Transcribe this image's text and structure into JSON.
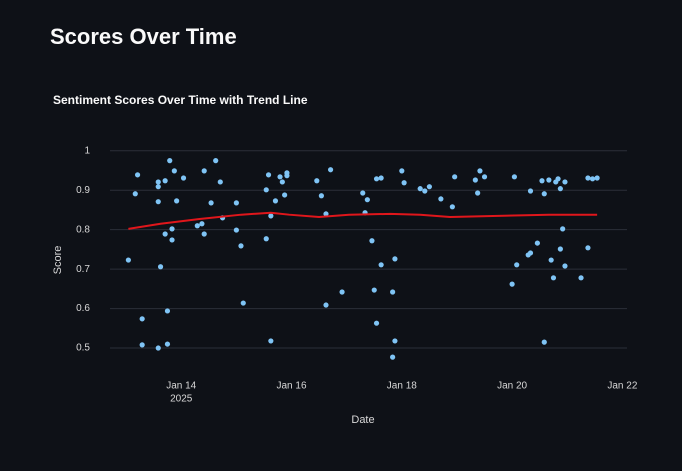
{
  "header": {
    "title": "Scores Over Time"
  },
  "chart_data": {
    "type": "scatter",
    "title": "Sentiment Scores Over Time with Trend Line",
    "x_label": "Date",
    "y_label": "Score",
    "xlim": [
      "2025-01-12T17:00",
      "2025-01-22T02:00"
    ],
    "xticks": [
      {
        "value": "2025-01-14T00:00",
        "label": "Jan 14"
      },
      {
        "value": "2025-01-16T00:00",
        "label": "Jan 16"
      },
      {
        "value": "2025-01-18T00:00",
        "label": "Jan 18"
      },
      {
        "value": "2025-01-20T00:00",
        "label": "Jan 20"
      },
      {
        "value": "2025-01-22T00:00",
        "label": "Jan 22"
      }
    ],
    "xtick_year": "2025",
    "ylim": [
      0.457,
      1.04
    ],
    "yticks": [
      0.5,
      0.6,
      0.7,
      0.8,
      0.9,
      1
    ],
    "grid": true,
    "series": [
      {
        "mode": "markers",
        "color": "#7fc4f5",
        "x": [
          "2025-01-13T01:00",
          "2025-01-13T04:00",
          "2025-01-13T05:00",
          "2025-01-13T07:00",
          "2025-01-13T07:00",
          "2025-01-13T14:00",
          "2025-01-13T14:00",
          "2025-01-13T14:00",
          "2025-01-13T14:00",
          "2025-01-13T15:00",
          "2025-01-13T17:00",
          "2025-01-13T17:00",
          "2025-01-13T18:00",
          "2025-01-13T18:00",
          "2025-01-13T19:00",
          "2025-01-13T20:00",
          "2025-01-13T20:00",
          "2025-01-13T21:00",
          "2025-01-13T22:00",
          "2025-01-14T01:00",
          "2025-01-14T07:00",
          "2025-01-14T09:00",
          "2025-01-14T10:00",
          "2025-01-14T10:00",
          "2025-01-14T13:00",
          "2025-01-14T15:00",
          "2025-01-14T17:00",
          "2025-01-14T18:00",
          "2025-01-15T00:00",
          "2025-01-15T00:00",
          "2025-01-15T02:00",
          "2025-01-15T03:00",
          "2025-01-15T13:00",
          "2025-01-15T13:00",
          "2025-01-15T14:00",
          "2025-01-15T15:00",
          "2025-01-15T15:00",
          "2025-01-15T17:00",
          "2025-01-15T19:00",
          "2025-01-15T20:00",
          "2025-01-15T21:00",
          "2025-01-15T22:00",
          "2025-01-15T22:00",
          "2025-01-16T11:00",
          "2025-01-16T13:00",
          "2025-01-16T15:00",
          "2025-01-16T15:00",
          "2025-01-16T17:00",
          "2025-01-16T22:00",
          "2025-01-17T07:00",
          "2025-01-17T08:00",
          "2025-01-17T09:00",
          "2025-01-17T11:00",
          "2025-01-17T12:00",
          "2025-01-17T13:00",
          "2025-01-17T13:00",
          "2025-01-17T15:00",
          "2025-01-17T15:00",
          "2025-01-17T20:00",
          "2025-01-17T21:00",
          "2025-01-17T21:00",
          "2025-01-17T20:00",
          "2025-01-18T00:00",
          "2025-01-18T01:00",
          "2025-01-18T08:00",
          "2025-01-18T10:00",
          "2025-01-18T12:00",
          "2025-01-18T17:00",
          "2025-01-18T22:00",
          "2025-01-18T23:00",
          "2025-01-19T08:00",
          "2025-01-19T09:00",
          "2025-01-19T10:00",
          "2025-01-19T12:00",
          "2025-01-20T00:00",
          "2025-01-20T01:00",
          "2025-01-20T02:00",
          "2025-01-20T07:00",
          "2025-01-20T08:00",
          "2025-01-20T08:00",
          "2025-01-20T11:00",
          "2025-01-20T13:00",
          "2025-01-20T14:00",
          "2025-01-20T14:00",
          "2025-01-20T16:00",
          "2025-01-20T17:00",
          "2025-01-20T18:00",
          "2025-01-20T19:00",
          "2025-01-20T20:00",
          "2025-01-20T21:00",
          "2025-01-20T21:00",
          "2025-01-20T22:00",
          "2025-01-20T23:00",
          "2025-01-20T23:00",
          "2025-01-21T06:00",
          "2025-01-21T09:00",
          "2025-01-21T09:00",
          "2025-01-21T11:00",
          "2025-01-21T13:00"
        ],
        "values": [
          0.723,
          0.891,
          0.939,
          0.574,
          0.508,
          0.5,
          0.909,
          0.921,
          0.871,
          0.706,
          0.924,
          0.789,
          0.51,
          0.594,
          0.975,
          0.802,
          0.774,
          0.949,
          0.873,
          0.931,
          0.81,
          0.815,
          0.789,
          0.949,
          0.868,
          0.975,
          0.921,
          0.83,
          0.868,
          0.799,
          0.759,
          0.614,
          0.901,
          0.777,
          0.939,
          0.835,
          0.518,
          0.873,
          0.934,
          0.921,
          0.888,
          0.937,
          0.944,
          0.924,
          0.886,
          0.609,
          0.84,
          0.952,
          0.642,
          0.893,
          0.843,
          0.876,
          0.772,
          0.647,
          0.929,
          0.563,
          0.931,
          0.711,
          0.642,
          0.518,
          0.726,
          0.477,
          0.949,
          0.919,
          0.904,
          0.898,
          0.909,
          0.878,
          0.858,
          0.934,
          0.926,
          0.893,
          0.949,
          0.934,
          0.662,
          0.934,
          0.711,
          0.736,
          0.898,
          0.741,
          0.766,
          0.924,
          0.515,
          0.891,
          0.926,
          0.723,
          0.678,
          0.921,
          0.929,
          0.904,
          0.751,
          0.802,
          0.921,
          0.708,
          0.678,
          0.931,
          0.754,
          0.929,
          0.931
        ]
      },
      {
        "mode": "lines",
        "color": "#e0161b",
        "x": [
          "2025-01-13T01:00",
          "2025-01-13T15:00",
          "2025-01-14T08:00",
          "2025-01-15T02:00",
          "2025-01-15T15:00",
          "2025-01-15T23:00",
          "2025-01-16T12:00",
          "2025-01-17T01:00",
          "2025-01-17T19:00",
          "2025-01-18T08:00",
          "2025-01-18T21:00",
          "2025-01-19T18:00",
          "2025-01-20T16:00",
          "2025-01-21T13:00"
        ],
        "values": [
          0.802,
          0.815,
          0.827,
          0.838,
          0.843,
          0.838,
          0.832,
          0.838,
          0.84,
          0.838,
          0.832,
          0.835,
          0.838,
          0.838
        ]
      }
    ]
  }
}
